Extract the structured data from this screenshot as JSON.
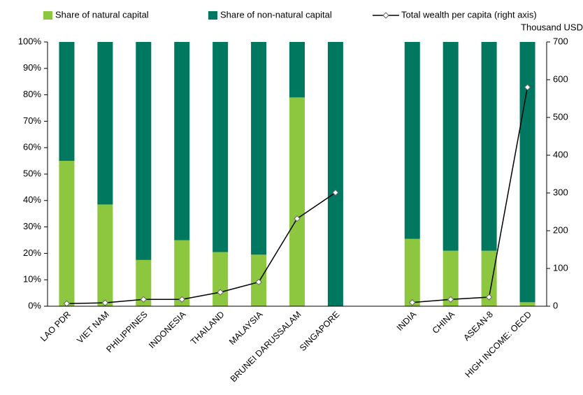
{
  "chart_data": {
    "type": "bar",
    "stacked": true,
    "categories": [
      "LAO PDR",
      "VIET NAM",
      "PHILIPPINES",
      "INDONESIA",
      "THAILAND",
      "MALAYSIA",
      "BRUNEI DARUSSALAM",
      "SINGAPORE",
      null,
      "INDIA",
      "CHINA",
      "ASEAN-8",
      "HIGH INCOME: OECD"
    ],
    "series": [
      {
        "name": "Share of natural capital",
        "color": "#8dc63f",
        "type": "bar",
        "values": [
          55,
          38.5,
          17.5,
          25,
          20.5,
          19.5,
          79,
          0,
          null,
          25.5,
          21,
          21,
          1.5
        ]
      },
      {
        "name": "Share of non-natural capital",
        "color": "#00785f",
        "type": "bar",
        "values": [
          45,
          61.5,
          82.5,
          75,
          79.5,
          80.5,
          21,
          100,
          null,
          74.5,
          79,
          79,
          98.5
        ]
      },
      {
        "name": "Total wealth per capita (right axis)",
        "color": "#000000",
        "type": "line",
        "axis": "y2",
        "values": [
          7,
          9,
          18,
          18,
          37,
          64,
          232,
          301,
          null,
          10,
          18,
          24,
          580
        ]
      }
    ],
    "y2_label": "Thousand USD",
    "ylim": [
      0,
      100
    ],
    "yticks": [
      {
        "value": 0,
        "label": "0%"
      },
      {
        "value": 10,
        "label": "10%"
      },
      {
        "value": 20,
        "label": "20%"
      },
      {
        "value": 30,
        "label": "30%"
      },
      {
        "value": 40,
        "label": "40%"
      },
      {
        "value": 50,
        "label": "50%"
      },
      {
        "value": 60,
        "label": "60%"
      },
      {
        "value": 70,
        "label": "70%"
      },
      {
        "value": 80,
        "label": "80%"
      },
      {
        "value": 90,
        "label": "90%"
      },
      {
        "value": 100,
        "label": "100%"
      }
    ],
    "y2lim": [
      0,
      700
    ],
    "y2ticks": [
      0,
      100,
      200,
      300,
      400,
      500,
      600,
      700
    ]
  }
}
